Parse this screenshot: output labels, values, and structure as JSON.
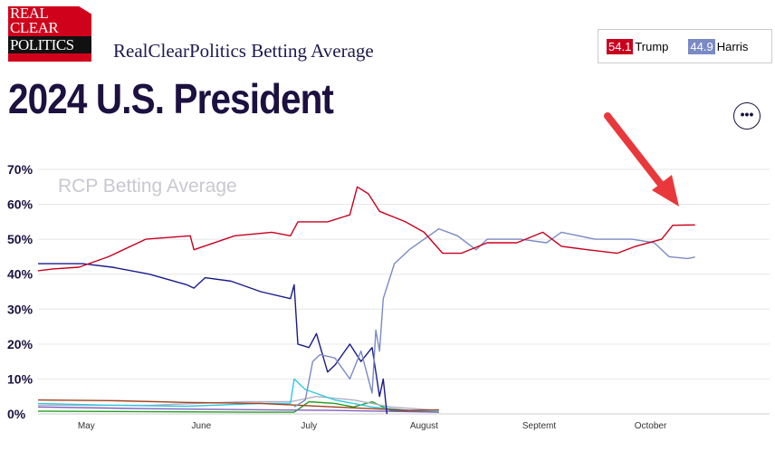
{
  "logo": {
    "line1": "REAL",
    "line2": "CLEAR",
    "line3": "POLITICS"
  },
  "header": {
    "subtitle": "RealClearPolitics Betting Average",
    "title": "2024 U.S. President",
    "more_icon": "ellipsis-icon"
  },
  "legend": [
    {
      "value": "54.1",
      "name": "Trump",
      "color": "#c8001e"
    },
    {
      "value": "44.9",
      "name": "Harris",
      "color": "#7b8ac4"
    }
  ],
  "chart_data": {
    "type": "line",
    "watermark": "RCP Betting Average",
    "ylim": [
      0,
      70
    ],
    "yticks": [
      "0%",
      "10%",
      "20%",
      "30%",
      "40%",
      "50%",
      "60%",
      "70%"
    ],
    "xticks": [
      {
        "label": "May",
        "day": 13
      },
      {
        "label": "June",
        "day": 44
      },
      {
        "label": "July",
        "day": 73
      },
      {
        "label": "August",
        "day": 104
      },
      {
        "label": "Septemt",
        "day": 135
      },
      {
        "label": "October",
        "day": 165
      }
    ],
    "x_unit": "days since ~Apr 17, 2024",
    "series": [
      {
        "name": "Trump",
        "color": "#c8001e",
        "points": [
          [
            0,
            41
          ],
          [
            4,
            41.5
          ],
          [
            11,
            42
          ],
          [
            19,
            45
          ],
          [
            29,
            50
          ],
          [
            41,
            51
          ],
          [
            42,
            47
          ],
          [
            53,
            51
          ],
          [
            63,
            52
          ],
          [
            68,
            51
          ],
          [
            70,
            55
          ],
          [
            78,
            55
          ],
          [
            84,
            57
          ],
          [
            86,
            65
          ],
          [
            89,
            63
          ],
          [
            92,
            58
          ],
          [
            99,
            55
          ],
          [
            104,
            52
          ],
          [
            109,
            46
          ],
          [
            114,
            46
          ],
          [
            121,
            49
          ],
          [
            129,
            49
          ],
          [
            136,
            52
          ],
          [
            141,
            48
          ],
          [
            148,
            47
          ],
          [
            156,
            46
          ],
          [
            161,
            48
          ],
          [
            168,
            50
          ],
          [
            171,
            54
          ],
          [
            177,
            54.1
          ]
        ]
      },
      {
        "name": "Harris",
        "color": "#7b8ac4",
        "points": [
          [
            69,
            2
          ],
          [
            72,
            4
          ],
          [
            74,
            15
          ],
          [
            76,
            17
          ],
          [
            80,
            16
          ],
          [
            84,
            10
          ],
          [
            87,
            18
          ],
          [
            90,
            6
          ],
          [
            91,
            24
          ],
          [
            92,
            18
          ],
          [
            93,
            33
          ],
          [
            96,
            43
          ],
          [
            100,
            47
          ],
          [
            104,
            50
          ],
          [
            108,
            53
          ],
          [
            113,
            51
          ],
          [
            118,
            47
          ],
          [
            121,
            50
          ],
          [
            130,
            50
          ],
          [
            137,
            49
          ],
          [
            141,
            52
          ],
          [
            150,
            50
          ],
          [
            160,
            50
          ],
          [
            166,
            49
          ],
          [
            170,
            45
          ],
          [
            175,
            44.5
          ],
          [
            177,
            44.9
          ]
        ]
      },
      {
        "color": "#1a1a8c",
        "points": [
          [
            0,
            43
          ],
          [
            12,
            43
          ],
          [
            20,
            42
          ],
          [
            30,
            40
          ],
          [
            40,
            37
          ],
          [
            42,
            36
          ],
          [
            45,
            39
          ],
          [
            52,
            38
          ],
          [
            60,
            35
          ],
          [
            68,
            33
          ],
          [
            69,
            37
          ],
          [
            70,
            20
          ],
          [
            73,
            19
          ],
          [
            75,
            23
          ],
          [
            78,
            12
          ],
          [
            80,
            14
          ],
          [
            84,
            20
          ],
          [
            87,
            15
          ],
          [
            90,
            19
          ],
          [
            92,
            5
          ],
          [
            93,
            10
          ],
          [
            94,
            0
          ]
        ]
      },
      {
        "color": "#a0401a",
        "points": [
          [
            0,
            4
          ],
          [
            20,
            3.8
          ],
          [
            40,
            3.3
          ],
          [
            60,
            3
          ],
          [
            80,
            2
          ],
          [
            100,
            1
          ],
          [
            108,
            1.2
          ]
        ]
      },
      {
        "color": "#30c8e0",
        "points": [
          [
            0,
            3
          ],
          [
            20,
            2.5
          ],
          [
            40,
            2.2
          ],
          [
            60,
            3
          ],
          [
            68,
            3
          ],
          [
            69,
            10
          ],
          [
            72,
            7
          ],
          [
            80,
            4
          ],
          [
            90,
            2
          ],
          [
            100,
            1
          ],
          [
            108,
            1
          ]
        ]
      },
      {
        "color": "#b0b0c8",
        "points": [
          [
            0,
            2.5
          ],
          [
            30,
            2.5
          ],
          [
            55,
            3.5
          ],
          [
            68,
            3.5
          ],
          [
            75,
            5
          ],
          [
            85,
            4
          ],
          [
            95,
            2
          ],
          [
            108,
            1
          ]
        ]
      },
      {
        "color": "#8060c0",
        "points": [
          [
            0,
            2
          ],
          [
            30,
            1.5
          ],
          [
            60,
            1.2
          ],
          [
            80,
            1
          ],
          [
            108,
            0.5
          ]
        ]
      },
      {
        "color": "#20a020",
        "points": [
          [
            0,
            0.8
          ],
          [
            60,
            0.5
          ],
          [
            69,
            0.5
          ],
          [
            73,
            3.5
          ],
          [
            80,
            3
          ],
          [
            85,
            2
          ],
          [
            90,
            3.5
          ],
          [
            95,
            1
          ],
          [
            108,
            0.5
          ]
        ]
      }
    ]
  },
  "annotation": {
    "type": "arrow",
    "color": "#e8383c"
  }
}
